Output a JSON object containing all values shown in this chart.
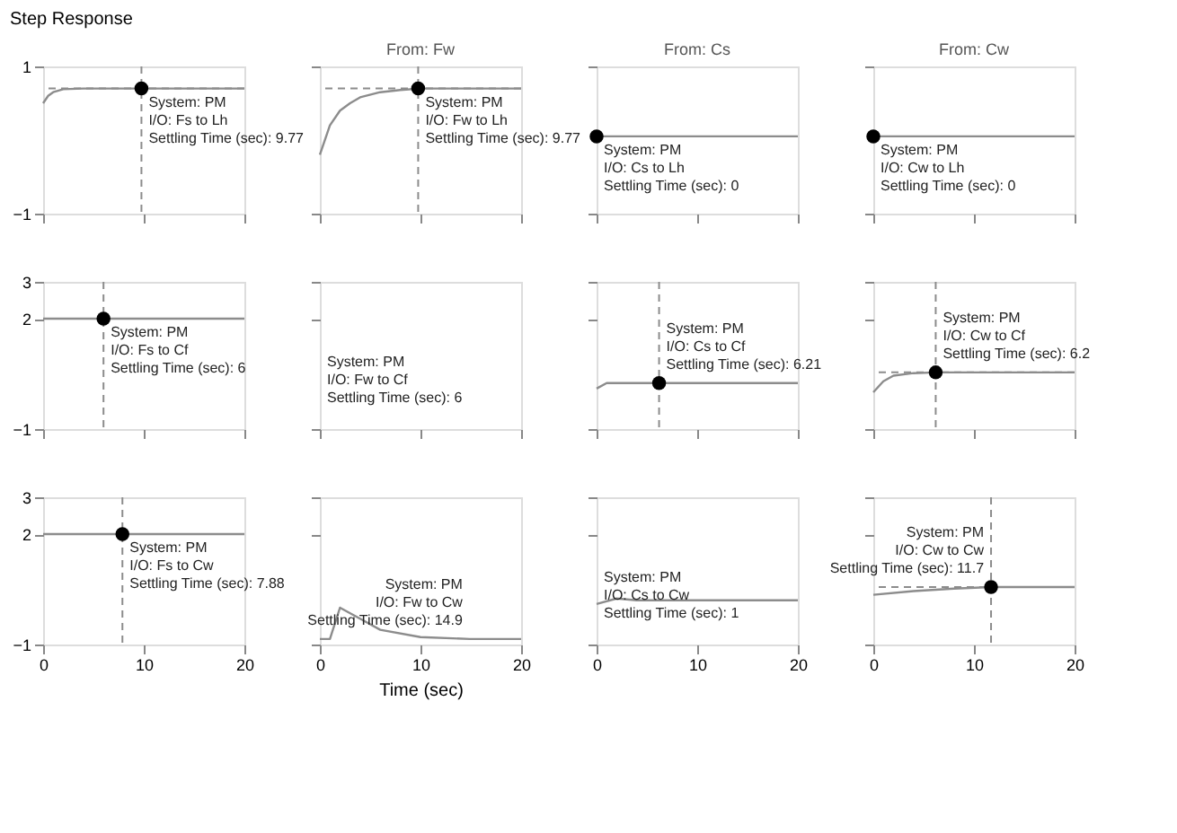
{
  "chart_data": [
    {
      "type": "line",
      "title": "Step Response",
      "xlim": [
        0,
        20
      ],
      "ylim": [
        -1,
        1
      ],
      "xticks": [
        {
          "value": 0,
          "label": null
        },
        {
          "value": 10,
          "label": null
        },
        {
          "value": 20,
          "label": null
        }
      ],
      "yticks": [
        -1,
        1
      ],
      "tick_labels": "y",
      "grid": false,
      "series": [
        {
          "color": "#8c8c8c",
          "x": [
            0,
            0.5,
            1,
            2,
            4,
            20
          ],
          "values": [
            0.5,
            0.6,
            0.65,
            0.69,
            0.7,
            0.7
          ]
        },
        {
          "type": "scatter",
          "color": "#000000",
          "x": [
            9.77
          ],
          "values": [
            0.7
          ]
        }
      ],
      "ref_lines": [
        {
          "axis": "x",
          "value": 9.77,
          "line_style": "dashed"
        },
        {
          "axis": "y",
          "value": 0.7,
          "line_style": "dashed"
        }
      ],
      "annotations": [
        {
          "text": "System: PM\nI/O: Fs to Lh\nSettling Time (sec): 9.77",
          "x": 9.77,
          "y": 0.7
        }
      ]
    },
    {
      "type": "line",
      "subtitle": "From: Fw",
      "xlim": [
        0,
        20
      ],
      "ylim": [
        -1,
        1
      ],
      "xticks": [
        {
          "value": 0,
          "label": null
        },
        {
          "value": 10,
          "label": null
        },
        {
          "value": 20,
          "label": null
        }
      ],
      "yticks": [
        {
          "value": -1,
          "label": null
        },
        {
          "value": 1,
          "label": null
        }
      ],
      "tick_labels": false,
      "grid": false,
      "series": [
        {
          "color": "#8c8c8c",
          "x": [
            0,
            1,
            2,
            3,
            4,
            6,
            8,
            10,
            20
          ],
          "values": [
            -0.2,
            0.2,
            0.4,
            0.5,
            0.58,
            0.65,
            0.68,
            0.7,
            0.7
          ]
        },
        {
          "type": "scatter",
          "color": "#000000",
          "x": [
            9.77
          ],
          "values": [
            0.7
          ]
        }
      ],
      "ref_lines": [
        {
          "axis": "x",
          "value": 9.77,
          "line_style": "dashed"
        },
        {
          "axis": "y",
          "value": 0.7,
          "line_style": "dashed"
        }
      ],
      "annotations": [
        {
          "text": "System: PM\nI/O: Fw to Lh\nSettling Time (sec): 9.77",
          "x": 9.77,
          "y": 0.7
        }
      ]
    },
    {
      "type": "line",
      "subtitle": "From: Cs",
      "xlim": [
        0,
        20
      ],
      "ylim": [
        -1,
        1
      ],
      "xticks": [
        {
          "value": 0,
          "label": null
        },
        {
          "value": 10,
          "label": null
        },
        {
          "value": 20,
          "label": null
        }
      ],
      "yticks": [
        {
          "value": -1,
          "label": null
        },
        {
          "value": 1,
          "label": null
        }
      ],
      "tick_labels": false,
      "grid": false,
      "series": [
        {
          "color": "#8c8c8c",
          "x": [
            0,
            20
          ],
          "values": [
            0.05,
            0.05
          ]
        },
        {
          "type": "scatter",
          "color": "#000000",
          "x": [
            0
          ],
          "values": [
            0.05
          ]
        }
      ],
      "annotations": [
        {
          "text": "System: PM\nI/O: Cs to Lh\nSettling Time (sec): 0",
          "x": 0,
          "y": 0.05
        }
      ]
    },
    {
      "type": "line",
      "subtitle": "From: Cw",
      "xlim": [
        0,
        20
      ],
      "ylim": [
        -1,
        1
      ],
      "xticks": [
        {
          "value": 0,
          "label": null
        },
        {
          "value": 10,
          "label": null
        },
        {
          "value": 20,
          "label": null
        }
      ],
      "yticks": [
        {
          "value": -1,
          "label": null
        },
        {
          "value": 1,
          "label": null
        }
      ],
      "tick_labels": false,
      "grid": false,
      "series": [
        {
          "color": "#8c8c8c",
          "x": [
            0,
            20
          ],
          "values": [
            0.05,
            0.05
          ]
        },
        {
          "type": "scatter",
          "color": "#000000",
          "x": [
            0
          ],
          "values": [
            0.05
          ]
        }
      ],
      "annotations": [
        {
          "text": "System: PM\nI/O: Cw to Lh\nSettling Time (sec): 0",
          "x": 0,
          "y": 0.05
        }
      ]
    },
    {
      "type": "line",
      "xlim": [
        0,
        20
      ],
      "ylim": [
        -1,
        3
      ],
      "xticks": [
        {
          "value": 0,
          "label": null
        },
        {
          "value": 10,
          "label": null
        },
        {
          "value": 20,
          "label": null
        }
      ],
      "yticks": [
        -1,
        2,
        3
      ],
      "tick_labels": "y",
      "grid": false,
      "series": [
        {
          "color": "#8c8c8c",
          "x": [
            0,
            20
          ],
          "values": [
            2,
            2
          ]
        },
        {
          "type": "scatter",
          "color": "#000000",
          "x": [
            6
          ],
          "values": [
            2
          ]
        }
      ],
      "ref_lines": [
        {
          "axis": "x",
          "value": 6,
          "line_style": "dashed"
        }
      ],
      "annotations": [
        {
          "text": "System: PM\nI/O: Fs to Cf\nSettling Time (sec): 6",
          "x": 6,
          "y": 2
        }
      ]
    },
    {
      "type": "line",
      "xlim": [
        0,
        20
      ],
      "ylim": [
        -1,
        3
      ],
      "xticks": [
        {
          "value": 0,
          "label": null
        },
        {
          "value": 10,
          "label": null
        },
        {
          "value": 20,
          "label": null
        }
      ],
      "yticks": [
        {
          "value": -1,
          "label": null
        },
        {
          "value": 2,
          "label": null
        },
        {
          "value": 3,
          "label": null
        }
      ],
      "tick_labels": false,
      "grid": false,
      "annotations": [
        "System: PM\nI/O: Fw to Cf\nSettling Time (sec): 6"
      ]
    },
    {
      "type": "line",
      "xlim": [
        0,
        20
      ],
      "ylim": [
        -1,
        3
      ],
      "xticks": [
        {
          "value": 0,
          "label": null
        },
        {
          "value": 10,
          "label": null
        },
        {
          "value": 20,
          "label": null
        }
      ],
      "yticks": [
        {
          "value": -1,
          "label": null
        },
        {
          "value": 2,
          "label": null
        },
        {
          "value": 3,
          "label": null
        }
      ],
      "tick_labels": false,
      "grid": false,
      "series": [
        {
          "color": "#8c8c8c",
          "x": [
            0,
            1,
            20
          ],
          "values": [
            0.1,
            0.25,
            0.25
          ]
        },
        {
          "type": "scatter",
          "color": "#000000",
          "x": [
            6.21
          ],
          "values": [
            0.25
          ]
        }
      ],
      "ref_lines": [
        {
          "axis": "x",
          "value": 6.21,
          "line_style": "dashed"
        }
      ],
      "annotations": [
        {
          "text": "System: PM\nI/O: Cs to Cf\nSettling Time (sec): 6.21",
          "x": 6.21,
          "y": 0.25
        }
      ]
    },
    {
      "type": "line",
      "xlim": [
        0,
        20
      ],
      "ylim": [
        -1,
        3
      ],
      "xticks": [
        {
          "value": 0,
          "label": null
        },
        {
          "value": 10,
          "label": null
        },
        {
          "value": 20,
          "label": null
        }
      ],
      "yticks": [
        {
          "value": -1,
          "label": null
        },
        {
          "value": 2,
          "label": null
        },
        {
          "value": 3,
          "label": null
        }
      ],
      "tick_labels": false,
      "grid": false,
      "series": [
        {
          "color": "#8c8c8c",
          "x": [
            0,
            1,
            2,
            4,
            6.2,
            20
          ],
          "values": [
            0,
            0.3,
            0.45,
            0.52,
            0.54,
            0.54
          ]
        },
        {
          "type": "scatter",
          "color": "#000000",
          "x": [
            6.2
          ],
          "values": [
            0.54
          ]
        }
      ],
      "ref_lines": [
        {
          "axis": "x",
          "value": 6.2,
          "line_style": "dashed"
        },
        {
          "axis": "y",
          "value": 0.54,
          "line_style": "dashed"
        }
      ],
      "annotations": [
        {
          "text": "System: PM\nI/O: Cw to Cf\nSettling Time (sec): 6.2",
          "x": 6.2,
          "y": 0.54
        }
      ]
    },
    {
      "type": "line",
      "xlim": [
        0,
        20
      ],
      "ylim": [
        -1,
        3
      ],
      "xticks": [
        0,
        10,
        20
      ],
      "yticks": [
        -1,
        2,
        3
      ],
      "grid": false,
      "series": [
        {
          "color": "#8c8c8c",
          "x": [
            0,
            20
          ],
          "values": [
            2,
            2
          ]
        },
        {
          "type": "scatter",
          "color": "#000000",
          "x": [
            7.88
          ],
          "values": [
            2
          ]
        }
      ],
      "ref_lines": [
        {
          "axis": "x",
          "value": 7.88,
          "line_style": "dashed"
        }
      ],
      "annotations": [
        {
          "text": "System: PM\nI/O: Fs to Cw\nSettling Time (sec): 7.88",
          "x": 7.88,
          "y": 2
        }
      ]
    },
    {
      "type": "line",
      "xlabel": "Time (sec)",
      "xlim": [
        0,
        20
      ],
      "ylim": [
        -1,
        3
      ],
      "xticks": [
        0,
        10,
        20
      ],
      "yticks": [
        {
          "value": -1,
          "label": null
        },
        {
          "value": 2,
          "label": null
        },
        {
          "value": 3,
          "label": null
        }
      ],
      "tick_labels": "x",
      "grid": false,
      "series": [
        {
          "color": "#8c8c8c",
          "x": [
            0,
            1,
            2,
            4,
            6,
            10,
            14.9,
            20
          ],
          "values": [
            -0.85,
            -0.85,
            0,
            -0.3,
            -0.6,
            -0.8,
            -0.85,
            -0.85
          ]
        }
      ],
      "annotations": [
        {
          "text": "System: PM\nI/O: Fw to Cw\nSettling Time (sec): 14.9",
          "x": 14.9,
          "y": -0.85
        }
      ]
    },
    {
      "type": "line",
      "xlim": [
        0,
        20
      ],
      "ylim": [
        -1,
        3
      ],
      "xticks": [
        0,
        10,
        20
      ],
      "yticks": [
        {
          "value": -1,
          "label": null
        },
        {
          "value": 2,
          "label": null
        },
        {
          "value": 3,
          "label": null
        }
      ],
      "tick_labels": "x",
      "grid": false,
      "series": [
        {
          "color": "#8c8c8c",
          "x": [
            0,
            2,
            4,
            20
          ],
          "values": [
            0.1,
            0.25,
            0.2,
            0.2
          ]
        }
      ],
      "annotations": [
        "System: PM\nI/O: Cs to Cw\nSettling Time (sec): 1"
      ]
    },
    {
      "type": "line",
      "xlim": [
        0,
        20
      ],
      "ylim": [
        -1,
        3
      ],
      "xticks": [
        0,
        10,
        20
      ],
      "yticks": [
        {
          "value": -1,
          "label": null
        },
        {
          "value": 2,
          "label": null
        },
        {
          "value": 3,
          "label": null
        }
      ],
      "tick_labels": "x",
      "grid": false,
      "series": [
        {
          "color": "#8c8c8c",
          "x": [
            0,
            4,
            8,
            11.7,
            20
          ],
          "values": [
            0.35,
            0.45,
            0.52,
            0.56,
            0.56
          ]
        },
        {
          "type": "scatter",
          "color": "#000000",
          "x": [
            11.7
          ],
          "values": [
            0.56
          ]
        }
      ],
      "ref_lines": [
        {
          "axis": "x",
          "value": 11.7,
          "line_style": "dashed"
        },
        {
          "axis": "y",
          "value": 0.56,
          "line_style": "dashed"
        }
      ],
      "annotations": [
        {
          "text": "System: PM\nI/O: Cw to Cw\nSettling Time (sec): 11.7",
          "x": 11.7,
          "y": 0.56
        }
      ]
    }
  ]
}
